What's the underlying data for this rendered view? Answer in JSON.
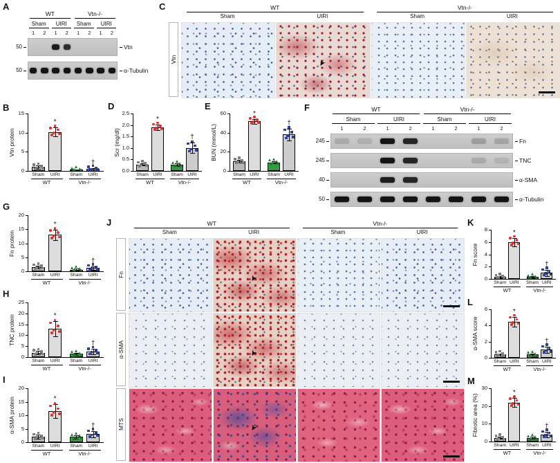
{
  "figure": {
    "background": "#ffffff",
    "panel_letters": [
      "A",
      "B",
      "C",
      "D",
      "E",
      "F",
      "G",
      "H",
      "I",
      "J",
      "K",
      "L",
      "M"
    ]
  },
  "symbols": {
    "asterisk": "*",
    "dagger": "†",
    "arrow": "➤"
  },
  "chart_style": {
    "bar_colors": [
      "#b8b8b8",
      "#dcdcdc",
      "#2f9e41",
      "#cccccc"
    ],
    "dot_colors": [
      "#7f7f7f",
      "#e02f28",
      "#1e7a2e",
      "#2b3f9e"
    ],
    "dot_shapes": [
      "square",
      "circle",
      "triangle",
      "square"
    ]
  },
  "blots": {
    "A": {
      "group_headers": [
        {
          "label": "WT"
        },
        {
          "label": "Vtn-/-"
        }
      ],
      "condition_headers": [
        "Sham",
        "UIRI",
        "Sham",
        "UIRI"
      ],
      "lane_numbers": [
        "1",
        "2",
        "1",
        "2",
        "1",
        "2",
        "1",
        "2"
      ],
      "rows": [
        {
          "mw": "50",
          "label": "Vtn",
          "bands": [
            0,
            0,
            0.95,
            0.85,
            0,
            0,
            0,
            0
          ]
        },
        {
          "mw": "50",
          "label": "α-Tubulin",
          "bands": [
            1,
            1,
            1,
            1,
            1,
            1,
            1,
            1
          ]
        }
      ]
    },
    "F": {
      "group_headers": [
        {
          "label": "WT"
        },
        {
          "label": "Vtn-/-"
        }
      ],
      "condition_headers": [
        "Sham",
        "UIRI",
        "Sham",
        "UIRI"
      ],
      "lane_numbers": [
        "1",
        "2",
        "1",
        "2",
        "1",
        "2",
        "1",
        "2"
      ],
      "rows": [
        {
          "mw": "245",
          "label": "Fn",
          "bands": [
            0.15,
            0.12,
            1,
            0.9,
            0,
            0,
            0.22,
            0.18
          ]
        },
        {
          "mw": "245",
          "label": "TNC",
          "bands": [
            0,
            0,
            1,
            0.9,
            0,
            0,
            0.15,
            0.1
          ]
        },
        {
          "mw": "40",
          "label": "α-SMA",
          "bands": [
            0,
            0,
            0.95,
            0.9,
            0,
            0,
            0,
            0
          ]
        },
        {
          "mw": "50",
          "label": "α-Tubulin",
          "bands": [
            1,
            1,
            1,
            1,
            1,
            1,
            1,
            1
          ]
        }
      ]
    }
  },
  "histology": {
    "C": {
      "groups": [
        "WT",
        "Vtn-/-"
      ],
      "columns": [
        "Sham",
        "UIRI",
        "Sham",
        "UIRI"
      ],
      "rows": [
        {
          "label": "Vtn",
          "cells": [
            {
              "style": "ihc-blue"
            },
            {
              "style": "ihc-red",
              "arrow": true
            },
            {
              "style": "ihc-blue2"
            },
            {
              "style": "ihc-tan",
              "scalebar": true
            }
          ]
        }
      ]
    },
    "J": {
      "groups": [
        "WT",
        "Vtn-/-"
      ],
      "columns": [
        "Sham",
        "UIRI",
        "Sham",
        "UIRI"
      ],
      "rows": [
        {
          "label": "Fn",
          "cells": [
            {
              "style": "ihc-blue"
            },
            {
              "style": "ihc-red-strong",
              "arrow": true
            },
            {
              "style": "ihc-blue2"
            },
            {
              "style": "ihc-blue",
              "scalebar": true
            }
          ]
        },
        {
          "label": "α-SMA",
          "cells": [
            {
              "style": "ihc-pale"
            },
            {
              "style": "ihc-red-strong",
              "arrow": true
            },
            {
              "style": "ihc-pale"
            },
            {
              "style": "ihc-pale",
              "scalebar": true
            }
          ]
        },
        {
          "label": "MTS",
          "cells": [
            {
              "style": "mts-pink"
            },
            {
              "style": "mts-blue",
              "arrow": true
            },
            {
              "style": "mts-pink2"
            },
            {
              "style": "mts-pink",
              "scalebar": true
            }
          ]
        }
      ]
    }
  },
  "chart_data": [
    {
      "id": "B",
      "type": "bar",
      "ylabel": "Vtn protein",
      "ylim": [
        0,
        15
      ],
      "yticks": [
        0,
        5,
        10,
        15
      ],
      "ytick_labels": [
        "0",
        "5",
        "10",
        "15"
      ],
      "categories": [
        "Sham",
        "UIRI",
        "Sham",
        "UIRI"
      ],
      "groups": [
        "WT",
        "Vtn-/-"
      ],
      "values": [
        1.0,
        10.2,
        0.3,
        0.5
      ],
      "errors": [
        0.4,
        1.2,
        0.15,
        0.3
      ],
      "sig": [
        "",
        "*",
        "",
        "†"
      ]
    },
    {
      "id": "D",
      "type": "bar",
      "ylabel": "Scr (mg/dl)",
      "ylim": [
        0,
        2.5
      ],
      "yticks": [
        0,
        0.5,
        1,
        1.5,
        2,
        2.5
      ],
      "ytick_labels": [
        "0.0",
        "0.5",
        "1.0",
        "1.5",
        "2.0",
        "2.5"
      ],
      "categories": [
        "Sham",
        "UIRI",
        "Sham",
        "UIRI"
      ],
      "groups": [
        "WT",
        "Vtn-/-"
      ],
      "values": [
        0.28,
        1.9,
        0.27,
        1.0
      ],
      "errors": [
        0.05,
        0.12,
        0.05,
        0.22
      ],
      "sig": [
        "",
        "*",
        "",
        "†"
      ]
    },
    {
      "id": "E",
      "type": "bar",
      "ylabel": "BUN (mmol/L)",
      "ylim": [
        0,
        60
      ],
      "yticks": [
        0,
        20,
        40,
        60
      ],
      "ytick_labels": [
        "0",
        "20",
        "40",
        "60"
      ],
      "categories": [
        "Sham",
        "UIRI",
        "Sham",
        "UIRI"
      ],
      "groups": [
        "WT",
        "Vtn-/-"
      ],
      "values": [
        10,
        52,
        9,
        38
      ],
      "errors": [
        1.5,
        2.5,
        1.2,
        6
      ],
      "sig": [
        "",
        "*",
        "",
        "†"
      ]
    },
    {
      "id": "G",
      "type": "bar",
      "ylabel": "Fn protein",
      "ylim": [
        0,
        20
      ],
      "yticks": [
        0,
        5,
        10,
        15,
        20
      ],
      "ytick_labels": [
        "0",
        "5",
        "10",
        "15",
        "20"
      ],
      "categories": [
        "Sham",
        "UIRI",
        "Sham",
        "UIRI"
      ],
      "groups": [
        "WT",
        "Vtn-/-"
      ],
      "values": [
        1.5,
        13,
        0.6,
        1.2
      ],
      "errors": [
        0.5,
        1.8,
        0.3,
        0.6
      ],
      "sig": [
        "",
        "*",
        "",
        "†"
      ]
    },
    {
      "id": "H",
      "type": "bar",
      "ylabel": "TNC protein",
      "ylim": [
        0,
        25
      ],
      "yticks": [
        0,
        5,
        10,
        15,
        20,
        25
      ],
      "ytick_labels": [
        "0",
        "5",
        "10",
        "15",
        "20",
        "25"
      ],
      "categories": [
        "Sham",
        "UIRI",
        "Sham",
        "UIRI"
      ],
      "groups": [
        "WT",
        "Vtn-/-"
      ],
      "values": [
        2,
        13,
        1.5,
        2.5
      ],
      "errors": [
        0.7,
        3.5,
        0.5,
        1.2
      ],
      "sig": [
        "",
        "*",
        "",
        "†"
      ]
    },
    {
      "id": "I",
      "type": "bar",
      "ylabel": "α-SMA protein",
      "ylim": [
        0,
        20
      ],
      "yticks": [
        0,
        5,
        10,
        15,
        20
      ],
      "ytick_labels": [
        "0",
        "5",
        "10",
        "15",
        "20"
      ],
      "categories": [
        "Sham",
        "UIRI",
        "Sham",
        "UIRI"
      ],
      "groups": [
        "WT",
        "Vtn-/-"
      ],
      "values": [
        2,
        11.5,
        2,
        3
      ],
      "errors": [
        0.7,
        2.5,
        0.6,
        1.2
      ],
      "sig": [
        "",
        "*",
        "",
        "†"
      ]
    },
    {
      "id": "K",
      "type": "bar",
      "ylabel": "Fn score",
      "ylim": [
        0,
        8
      ],
      "yticks": [
        0,
        2,
        4,
        6,
        8
      ],
      "ytick_labels": [
        "0",
        "2",
        "4",
        "6",
        "8"
      ],
      "categories": [
        "Sham",
        "UIRI",
        "Sham",
        "UIRI"
      ],
      "groups": [
        "WT",
        "Vtn-/-"
      ],
      "values": [
        0.3,
        6,
        0.3,
        1
      ],
      "errors": [
        0.12,
        0.7,
        0.12,
        0.5
      ],
      "sig": [
        "",
        "*",
        "",
        "†"
      ]
    },
    {
      "id": "L",
      "type": "bar",
      "ylabel": "α-SMA score",
      "ylim": [
        0,
        6
      ],
      "yticks": [
        0,
        2,
        4,
        6
      ],
      "ytick_labels": [
        "0",
        "2",
        "4",
        "6"
      ],
      "categories": [
        "Sham",
        "UIRI",
        "Sham",
        "UIRI"
      ],
      "groups": [
        "WT",
        "Vtn-/-"
      ],
      "values": [
        0.4,
        4.5,
        0.4,
        1
      ],
      "errors": [
        0.15,
        0.6,
        0.15,
        0.4
      ],
      "sig": [
        "",
        "*",
        "",
        "†"
      ]
    },
    {
      "id": "M",
      "type": "bar",
      "ylabel": "Fibrotic area (%)",
      "ylim": [
        0,
        30
      ],
      "yticks": [
        0,
        10,
        20,
        30
      ],
      "ytick_labels": [
        "0",
        "10",
        "20",
        "30"
      ],
      "categories": [
        "Sham",
        "UIRI",
        "Sham",
        "UIRI"
      ],
      "groups": [
        "WT",
        "Vtn-/-"
      ],
      "values": [
        2,
        22,
        2,
        4
      ],
      "errors": [
        0.6,
        2.5,
        0.6,
        1.5
      ],
      "sig": [
        "",
        "*",
        "",
        "†"
      ]
    }
  ]
}
